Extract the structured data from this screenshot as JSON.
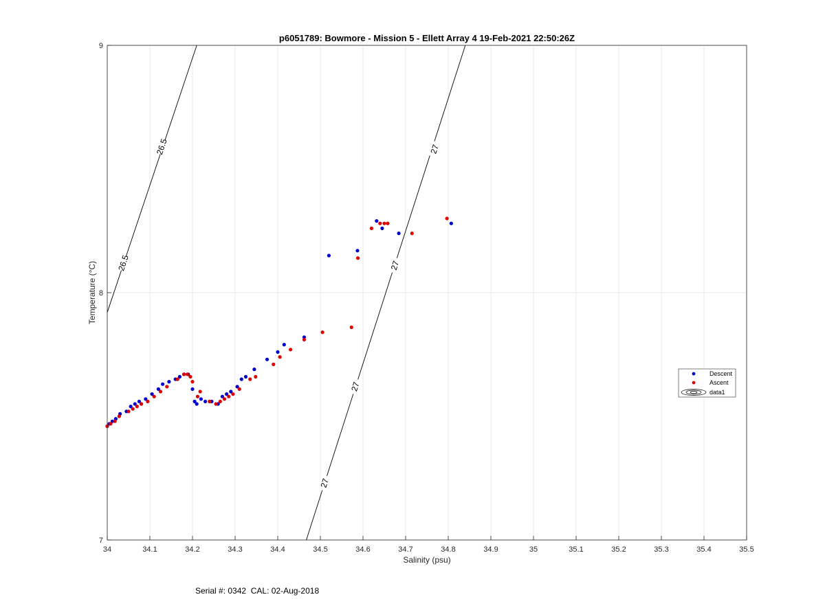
{
  "chart_data": {
    "type": "scatter",
    "title": "p6051789: Bowmore - Mission 5 - Ellett Array 4 19-Feb-2021 22:50:26Z",
    "xlabel": "Salinity (psu)",
    "ylabel": "Temperature (°C)",
    "xlim": [
      34,
      35.5
    ],
    "ylim": [
      7,
      9
    ],
    "x_ticks": [
      "34",
      "34.1",
      "34.2",
      "34.3",
      "34.4",
      "34.5",
      "34.6",
      "34.7",
      "34.8",
      "34.9",
      "35",
      "35.1",
      "35.2",
      "35.3",
      "35.4",
      "35.5"
    ],
    "y_ticks": [
      "7",
      "8",
      "9"
    ],
    "grid": true,
    "legend_position": "right",
    "series": [
      {
        "name": "Descent",
        "color": "#0000cc",
        "points": [
          [
            34.0,
            7.46
          ],
          [
            34.005,
            7.47
          ],
          [
            34.012,
            7.48
          ],
          [
            34.02,
            7.49
          ],
          [
            34.03,
            7.51
          ],
          [
            34.045,
            7.52
          ],
          [
            34.055,
            7.54
          ],
          [
            34.065,
            7.55
          ],
          [
            34.075,
            7.56
          ],
          [
            34.09,
            7.57
          ],
          [
            34.105,
            7.59
          ],
          [
            34.12,
            7.61
          ],
          [
            34.13,
            7.63
          ],
          [
            34.145,
            7.64
          ],
          [
            34.16,
            7.65
          ],
          [
            34.17,
            7.66
          ],
          [
            34.18,
            7.67
          ],
          [
            34.19,
            7.67
          ],
          [
            34.2,
            7.61
          ],
          [
            34.205,
            7.56
          ],
          [
            34.21,
            7.55
          ],
          [
            34.22,
            7.57
          ],
          [
            34.23,
            7.56
          ],
          [
            34.245,
            7.56
          ],
          [
            34.26,
            7.55
          ],
          [
            34.27,
            7.58
          ],
          [
            34.28,
            7.59
          ],
          [
            34.29,
            7.6
          ],
          [
            34.305,
            7.62
          ],
          [
            34.315,
            7.65
          ],
          [
            34.325,
            7.66
          ],
          [
            34.345,
            7.69
          ],
          [
            34.375,
            7.73
          ],
          [
            34.4,
            7.76
          ],
          [
            34.415,
            7.79
          ],
          [
            34.462,
            7.82
          ],
          [
            34.52,
            8.15
          ],
          [
            34.587,
            8.17
          ],
          [
            34.632,
            8.29
          ],
          [
            34.645,
            8.26
          ],
          [
            34.684,
            8.24
          ],
          [
            34.807,
            8.28
          ]
        ]
      },
      {
        "name": "Ascent",
        "color": "#dd0000",
        "points": [
          [
            34.0,
            7.46
          ],
          [
            34.008,
            7.47
          ],
          [
            34.018,
            7.48
          ],
          [
            34.028,
            7.5
          ],
          [
            34.05,
            7.52
          ],
          [
            34.06,
            7.53
          ],
          [
            34.07,
            7.54
          ],
          [
            34.08,
            7.55
          ],
          [
            34.095,
            7.56
          ],
          [
            34.11,
            7.58
          ],
          [
            34.125,
            7.6
          ],
          [
            34.14,
            7.62
          ],
          [
            34.165,
            7.65
          ],
          [
            34.18,
            7.67
          ],
          [
            34.188,
            7.67
          ],
          [
            34.195,
            7.66
          ],
          [
            34.2,
            7.64
          ],
          [
            34.212,
            7.58
          ],
          [
            34.218,
            7.6
          ],
          [
            34.24,
            7.56
          ],
          [
            34.255,
            7.55
          ],
          [
            34.265,
            7.56
          ],
          [
            34.275,
            7.57
          ],
          [
            34.285,
            7.58
          ],
          [
            34.295,
            7.59
          ],
          [
            34.31,
            7.61
          ],
          [
            34.335,
            7.65
          ],
          [
            34.348,
            7.66
          ],
          [
            34.39,
            7.71
          ],
          [
            34.405,
            7.74
          ],
          [
            34.43,
            7.77
          ],
          [
            34.462,
            7.81
          ],
          [
            34.505,
            7.84
          ],
          [
            34.573,
            7.86
          ],
          [
            34.588,
            8.14
          ],
          [
            34.62,
            8.26
          ],
          [
            34.64,
            8.28
          ],
          [
            34.65,
            8.28
          ],
          [
            34.658,
            8.28
          ],
          [
            34.715,
            8.24
          ],
          [
            34.797,
            8.3
          ]
        ]
      }
    ],
    "contours": [
      {
        "name": "data1",
        "lines": [
          {
            "label": "26.5",
            "from": [
              34.0,
              7.92
            ],
            "to": [
              34.21,
              9.0
            ],
            "label_at": [
              [
                34.038,
                8.12
              ],
              [
                34.128,
                8.59
              ]
            ]
          },
          {
            "label": "27",
            "from": [
              34.467,
              7.0
            ],
            "to": [
              34.84,
              9.0
            ],
            "label_at": [
              [
                34.51,
                7.23
              ],
              [
                34.582,
                7.62
              ],
              [
                34.675,
                8.11
              ],
              [
                34.768,
                8.58
              ]
            ]
          }
        ]
      }
    ]
  },
  "footer": {
    "serial_text": "Serial #: 0342  CAL: 02-Aug-2018"
  }
}
